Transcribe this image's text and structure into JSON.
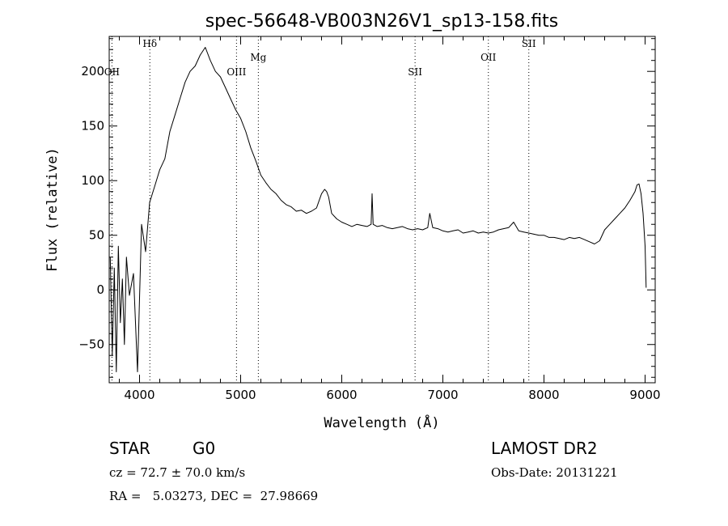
{
  "chart_data": {
    "type": "line",
    "title": "spec-56648-VB003N26V1_sp13-158.fits",
    "xlabel": "Wavelength (Å)",
    "ylabel": "Flux (relative)",
    "xlim": [
      3700,
      9100
    ],
    "ylim": [
      -85,
      232
    ],
    "xticks": [
      4000,
      5000,
      6000,
      7000,
      8000,
      9000
    ],
    "yticks": [
      -50,
      0,
      50,
      100,
      150,
      200
    ],
    "grid": false,
    "series": [
      {
        "x": [
          3710,
          3730,
          3750,
          3770,
          3790,
          3810,
          3830,
          3850,
          3870,
          3900,
          3940,
          3980,
          4020,
          4060,
          4100,
          4150,
          4200,
          4250,
          4300,
          4350,
          4400,
          4450,
          4500,
          4550,
          4600,
          4650,
          4700,
          4750,
          4800,
          4850,
          4900,
          4950,
          5000,
          5050,
          5100,
          5150,
          5200,
          5250,
          5300,
          5350,
          5400,
          5450,
          5500,
          5550,
          5600,
          5650,
          5700,
          5750,
          5800,
          5830,
          5850,
          5870,
          5900,
          5950,
          6000,
          6050,
          6100,
          6150,
          6200,
          6250,
          6290,
          6300,
          6310,
          6350,
          6400,
          6450,
          6500,
          6550,
          6600,
          6650,
          6700,
          6750,
          6800,
          6850,
          6870,
          6900,
          6950,
          7000,
          7050,
          7100,
          7150,
          7200,
          7250,
          7300,
          7350,
          7400,
          7450,
          7500,
          7550,
          7600,
          7650,
          7700,
          7750,
          7800,
          7850,
          7900,
          7950,
          8000,
          8050,
          8100,
          8150,
          8200,
          8250,
          8300,
          8350,
          8400,
          8450,
          8500,
          8550,
          8600,
          8650,
          8700,
          8750,
          8800,
          8850,
          8900,
          8920,
          8940,
          8960,
          8980,
          9000,
          9010
        ],
        "y": [
          30,
          -60,
          20,
          -75,
          40,
          -30,
          10,
          -50,
          30,
          -5,
          15,
          -75,
          60,
          35,
          80,
          95,
          110,
          120,
          145,
          160,
          175,
          190,
          200,
          205,
          215,
          222,
          210,
          200,
          195,
          185,
          175,
          165,
          157,
          145,
          130,
          118,
          105,
          98,
          92,
          88,
          82,
          78,
          76,
          72,
          73,
          70,
          72,
          75,
          88,
          92,
          90,
          85,
          70,
          65,
          62,
          60,
          58,
          60,
          59,
          58,
          60,
          88,
          60,
          58,
          59,
          57,
          56,
          57,
          58,
          56,
          55,
          56,
          55,
          57,
          70,
          57,
          56,
          54,
          53,
          54,
          55,
          52,
          53,
          54,
          52,
          53,
          52,
          53,
          55,
          56,
          57,
          62,
          54,
          53,
          52,
          51,
          50,
          50,
          48,
          48,
          47,
          46,
          48,
          47,
          48,
          46,
          44,
          42,
          45,
          55,
          60,
          65,
          70,
          75,
          82,
          90,
          96,
          97,
          88,
          70,
          40,
          2
        ]
      }
    ],
    "reference_lines": [
      {
        "label": "OII",
        "x": 3727
      },
      {
        "label": "Hδ",
        "x": 4102
      },
      {
        "label": "OIII",
        "x": 4959
      },
      {
        "label": "Mg",
        "x": 5175
      },
      {
        "label": "SII",
        "x": 6725
      },
      {
        "label": "OII",
        "x": 7450
      },
      {
        "label": "SII",
        "x": 7850
      }
    ]
  },
  "info": {
    "object_class": "STAR",
    "subclass": "G0",
    "survey": "LAMOST DR2",
    "cz": "cz = 72.7 ± 70.0 km/s",
    "obs_date": "Obs-Date: 20131221",
    "coords": "RA =   5.03273, DEC =  27.98669"
  }
}
